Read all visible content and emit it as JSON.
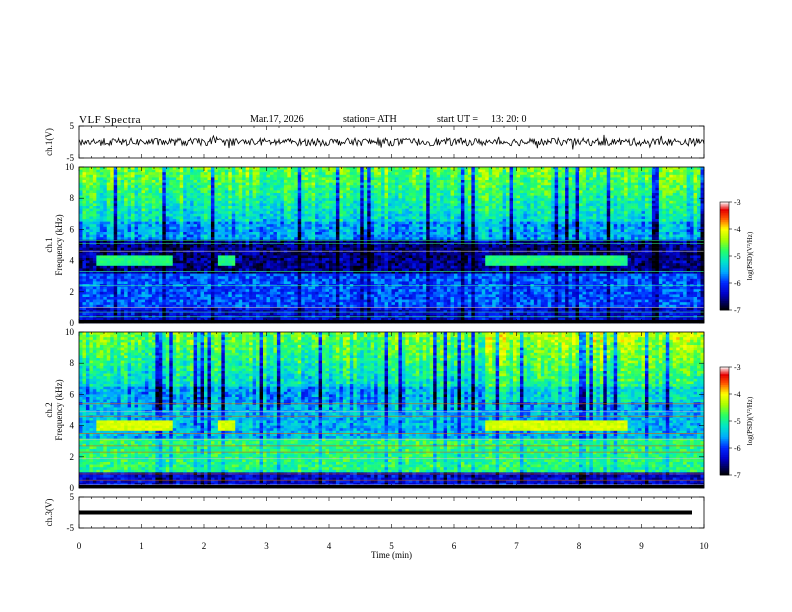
{
  "header": {
    "title": "VLF  Spectra",
    "date": "Mar.17, 2026",
    "station": "station= ATH",
    "start_label": "start  UT  =",
    "start_time": "13: 20: 0"
  },
  "chart_data": [
    {
      "type": "line",
      "ylabel": "ch.1(V)",
      "ylim": [
        -5,
        5
      ],
      "yticks": [
        "5",
        "-5"
      ],
      "xlim": [
        0,
        10
      ],
      "series": [
        {
          "values_description_free": true,
          "mean": 0,
          "amplitude": 1.2
        }
      ]
    },
    {
      "type": "heatmap",
      "ylabel": [
        "ch.1",
        "Frequency  (kHz)"
      ],
      "ylim": [
        0,
        10
      ],
      "yticks": [
        "0",
        "2",
        "4",
        "6",
        "8",
        "10"
      ],
      "xlim": [
        0,
        10
      ],
      "zlim": [
        -7,
        -3
      ],
      "colorbar_label": "log(PSD)(V²/Hz)",
      "colorbar_ticks": [
        "-3",
        "-4",
        "-5",
        "-6",
        "-7"
      ],
      "bands": [
        {
          "x0": 0.3,
          "x1": 1.5,
          "f0": 3.6,
          "f1": 4.3
        },
        {
          "x0": 2.2,
          "x1": 2.5,
          "f0": 3.6,
          "f1": 4.3
        },
        {
          "x0": 6.5,
          "x1": 8.8,
          "f0": 3.6,
          "f1": 4.3
        }
      ]
    },
    {
      "type": "heatmap",
      "ylabel": [
        "ch.2",
        "Frequency  (kHz)"
      ],
      "ylim": [
        0,
        10
      ],
      "yticks": [
        "0",
        "2",
        "4",
        "6",
        "8",
        "10"
      ],
      "xlim": [
        0,
        10
      ],
      "zlim": [
        -7,
        -3
      ],
      "colorbar_label": "log(PSD)(V²/Hz)",
      "colorbar_ticks": [
        "-3",
        "-4",
        "-5",
        "-6",
        "-7"
      ],
      "bands": [
        {
          "x0": 0.3,
          "x1": 1.5,
          "f0": 3.6,
          "f1": 4.3
        },
        {
          "x0": 2.2,
          "x1": 2.5,
          "f0": 3.6,
          "f1": 4.3
        },
        {
          "x0": 6.5,
          "x1": 8.8,
          "f0": 3.6,
          "f1": 4.3
        }
      ]
    },
    {
      "type": "line",
      "ylabel": "ch.3(V)",
      "ylim": [
        -5,
        5
      ],
      "yticks": [
        "5",
        "-5"
      ],
      "xlim": [
        0,
        10
      ],
      "xlabel": "Time  (min)",
      "xticks": [
        "0",
        "1",
        "2",
        "3",
        "4",
        "5",
        "6",
        "7",
        "8",
        "9",
        "10"
      ],
      "series": [
        {
          "constant": 0
        }
      ]
    }
  ],
  "colors": {
    "signal": "#000000",
    "scale": [
      "#000000",
      "#0000ff",
      "#00c8ff",
      "#00ff80",
      "#ffff00",
      "#ff0000",
      "#ffffff"
    ]
  }
}
